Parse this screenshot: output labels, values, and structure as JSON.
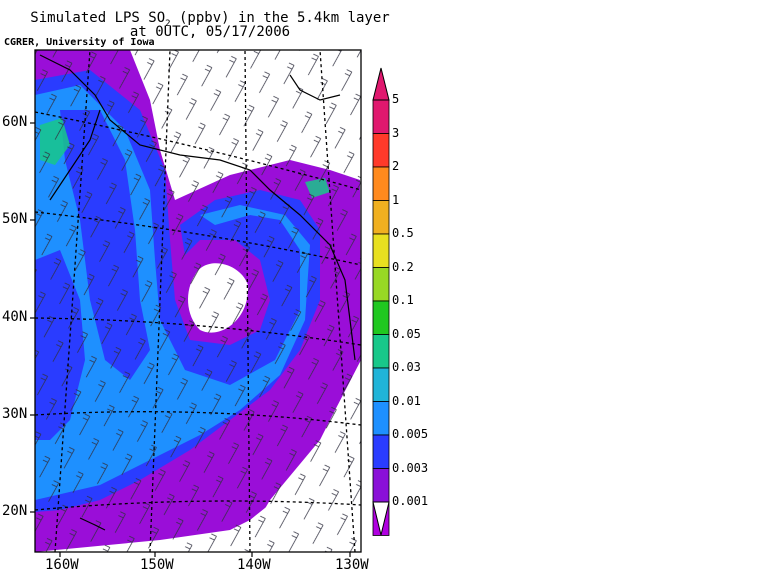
{
  "title": {
    "line1_prefix": "Simulated LPS SO",
    "line1_sub": "2",
    "line1_suffix": " (ppbv) in the 5.4km layer",
    "line2": "at 0UTC, 05/17/2006"
  },
  "credit": "CGRER, University of Iowa",
  "map": {
    "lat_labels": [
      "60N",
      "50N",
      "40N",
      "30N",
      "20N"
    ],
    "lon_labels": [
      "160W",
      "150W",
      "140W",
      "130W"
    ]
  },
  "colorbar": {
    "levels": [
      "5",
      "3",
      "2",
      "1",
      "0.5",
      "0.2",
      "0.1",
      "0.05",
      "0.03",
      "0.01",
      "0.005",
      "0.003",
      "0.001"
    ],
    "colors": [
      "#e0186e",
      "#ff3a2a",
      "#ff8a1e",
      "#f0b020",
      "#e8e020",
      "#98d824",
      "#20c820",
      "#18c88a",
      "#20b4d8",
      "#1e90ff",
      "#2a3cff",
      "#8a10d8",
      "#b000e0"
    ]
  }
}
